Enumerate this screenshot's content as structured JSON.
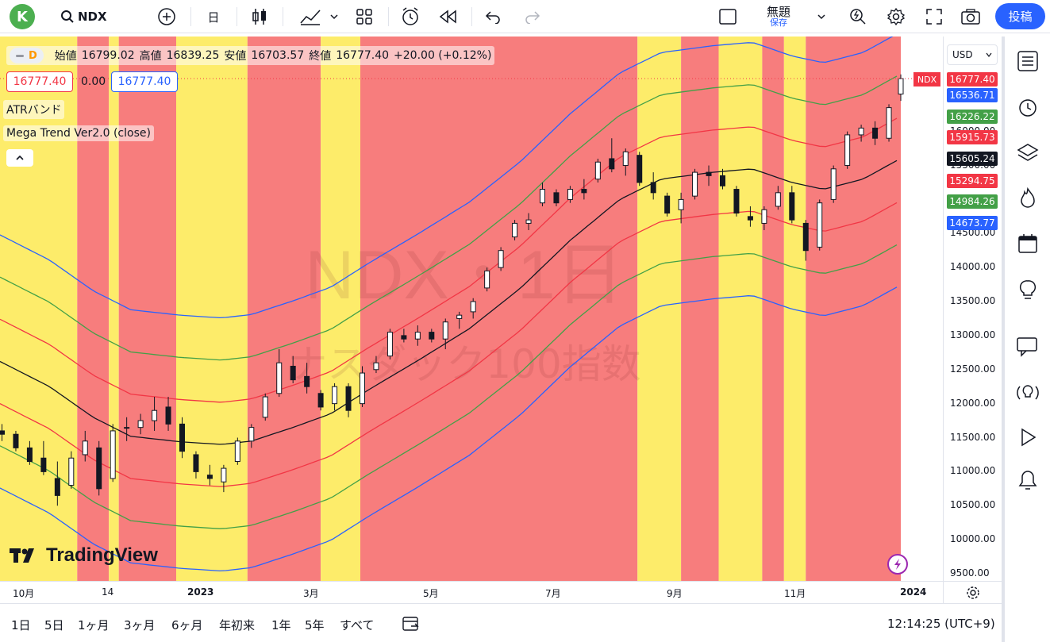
{
  "topbar": {
    "avatar_letter": "K",
    "symbol": "NDX",
    "interval": "日",
    "layout_title": "無題",
    "layout_subtitle": "保存",
    "publish": "投稿"
  },
  "legend": {
    "badge": "D",
    "open_label": "始値",
    "open": "16799.02",
    "high_label": "高値",
    "high": "16839.25",
    "low_label": "安値",
    "low": "16703.57",
    "close_label": "終値",
    "close": "16777.40",
    "change": "+20.00 (+0.12%)",
    "bid": "16777.40",
    "spread": "0.00",
    "ask": "16777.40",
    "indicator1": "ATRバンド",
    "indicator2": "Mega Trend Ver2.0 (close)"
  },
  "watermark": {
    "line1": "NDX・1日",
    "line2": "ナスダック100指数"
  },
  "logo": "TradingView",
  "currency": "USD",
  "price_axis": {
    "ticks": [
      "16000.00",
      "15500.00",
      "15000.00",
      "14500.00",
      "14000.00",
      "13500.00",
      "13000.00",
      "12500.00",
      "12000.00",
      "11500.00",
      "11000.00",
      "10500.00",
      "10000.00",
      "9500.00"
    ],
    "ticker_tag": "NDX",
    "labels": [
      {
        "text": "16777.40",
        "color": "#f23645"
      },
      {
        "text": "16536.71",
        "color": "#2962ff"
      },
      {
        "text": "16226.22",
        "color": "#43a047"
      },
      {
        "text": "15915.73",
        "color": "#f23645"
      },
      {
        "text": "15605.24",
        "color": "#131722"
      },
      {
        "text": "15294.75",
        "color": "#f23645"
      },
      {
        "text": "14984.26",
        "color": "#43a047"
      },
      {
        "text": "14673.77",
        "color": "#2962ff"
      }
    ]
  },
  "time_axis": [
    "10月",
    "14",
    "2023",
    "3月",
    "5月",
    "7月",
    "9月",
    "11月",
    "2024"
  ],
  "bottombar": {
    "ranges": [
      "1日",
      "5日",
      "1ヶ月",
      "3ヶ月",
      "6ヶ月",
      "年初来",
      "1年",
      "5年",
      "すべて"
    ],
    "clock": "12:14:25 (UTC+9)"
  },
  "colors": {
    "zone_red": "#f77d7d",
    "zone_yellow": "#fdec6a",
    "band_blue": "#2962ff",
    "band_green": "#43a047",
    "band_red": "#f23645",
    "mid_line": "#131722",
    "accent": "#2962ff"
  },
  "chart_data": {
    "type": "candlestick",
    "y_range": [
      9400,
      17000
    ],
    "zones": [
      {
        "from": "2022-09-15",
        "to": "2022-10-24",
        "color": "yellow"
      },
      {
        "from": "2022-10-24",
        "to": "2022-11-09",
        "color": "red"
      },
      {
        "from": "2022-11-09",
        "to": "2022-11-14",
        "color": "yellow"
      },
      {
        "from": "2022-11-14",
        "to": "2022-12-13",
        "color": "red"
      },
      {
        "from": "2022-12-13",
        "to": "2023-01-18",
        "color": "yellow"
      },
      {
        "from": "2023-01-18",
        "to": "2023-02-24",
        "color": "red"
      },
      {
        "from": "2023-02-24",
        "to": "2023-03-16",
        "color": "yellow"
      },
      {
        "from": "2023-03-16",
        "to": "2023-08-03",
        "color": "red"
      },
      {
        "from": "2023-08-03",
        "to": "2023-08-25",
        "color": "yellow"
      },
      {
        "from": "2023-08-25",
        "to": "2023-09-13",
        "color": "red"
      },
      {
        "from": "2023-09-13",
        "to": "2023-10-05",
        "color": "yellow"
      },
      {
        "from": "2023-10-05",
        "to": "2023-10-16",
        "color": "red"
      },
      {
        "from": "2023-10-16",
        "to": "2023-10-27",
        "color": "yellow"
      },
      {
        "from": "2023-10-27",
        "to": "2023-12-14",
        "color": "red"
      }
    ],
    "mid_line": [
      [
        "2022-09-15",
        12620
      ],
      [
        "2022-10-10",
        12250
      ],
      [
        "2022-11-01",
        11800
      ],
      [
        "2022-11-20",
        11520
      ],
      [
        "2022-12-15",
        11440
      ],
      [
        "2023-01-05",
        11400
      ],
      [
        "2023-01-20",
        11450
      ],
      [
        "2023-02-10",
        11650
      ],
      [
        "2023-03-01",
        11850
      ],
      [
        "2023-03-20",
        12200
      ],
      [
        "2023-04-15",
        12650
      ],
      [
        "2023-05-10",
        13100
      ],
      [
        "2023-06-05",
        13700
      ],
      [
        "2023-06-30",
        14400
      ],
      [
        "2023-07-25",
        15000
      ],
      [
        "2023-08-15",
        15300
      ],
      [
        "2023-09-10",
        15400
      ],
      [
        "2023-09-30",
        15450
      ],
      [
        "2023-10-20",
        15250
      ],
      [
        "2023-11-05",
        15150
      ],
      [
        "2023-11-25",
        15300
      ],
      [
        "2023-12-14",
        15605
      ]
    ],
    "band_offsets_blue": 1860,
    "band_offsets_green": 1240,
    "band_offsets_red": 620,
    "candles": [
      [
        "2022-09-16",
        11600,
        11700,
        11450,
        11550
      ],
      [
        "2022-09-23",
        11550,
        11600,
        11300,
        11350
      ],
      [
        "2022-09-30",
        11350,
        11450,
        11100,
        11150
      ],
      [
        "2022-10-07",
        11200,
        11450,
        10950,
        11000
      ],
      [
        "2022-10-14",
        10900,
        11150,
        10500,
        10650
      ],
      [
        "2022-10-21",
        10800,
        11300,
        10750,
        11200
      ],
      [
        "2022-10-28",
        11250,
        11600,
        11150,
        11450
      ],
      [
        "2022-11-04",
        11350,
        11450,
        10650,
        10750
      ],
      [
        "2022-11-11",
        10900,
        11700,
        10850,
        11600
      ],
      [
        "2022-11-18",
        11650,
        11800,
        11450,
        11650
      ],
      [
        "2022-11-25",
        11650,
        11850,
        11550,
        11750
      ],
      [
        "2022-12-02",
        11750,
        12100,
        11600,
        11900
      ],
      [
        "2022-12-09",
        11950,
        12100,
        11600,
        11700
      ],
      [
        "2022-12-16",
        11700,
        11800,
        11200,
        11300
      ],
      [
        "2022-12-23",
        11250,
        11300,
        10900,
        11000
      ],
      [
        "2022-12-30",
        10950,
        11100,
        10800,
        10900
      ],
      [
        "2023-01-06",
        10850,
        11100,
        10700,
        11050
      ],
      [
        "2023-01-13",
        11150,
        11500,
        11100,
        11450
      ],
      [
        "2023-01-20",
        11450,
        11700,
        11350,
        11650
      ],
      [
        "2023-01-27",
        11800,
        12150,
        11750,
        12100
      ],
      [
        "2023-02-03",
        12150,
        12800,
        12100,
        12600
      ],
      [
        "2023-02-10",
        12550,
        12700,
        12300,
        12350
      ],
      [
        "2023-02-17",
        12400,
        12600,
        12150,
        12250
      ],
      [
        "2023-02-24",
        12150,
        12200,
        11900,
        11950
      ],
      [
        "2023-03-03",
        12000,
        12300,
        11900,
        12250
      ],
      [
        "2023-03-10",
        12250,
        12300,
        11800,
        11900
      ],
      [
        "2023-03-17",
        12000,
        12550,
        11950,
        12450
      ],
      [
        "2023-03-24",
        12500,
        12700,
        12450,
        12600
      ],
      [
        "2023-03-31",
        12700,
        13100,
        12650,
        13050
      ],
      [
        "2023-04-07",
        13000,
        13100,
        12900,
        12950
      ],
      [
        "2023-04-14",
        12950,
        13150,
        12850,
        13050
      ],
      [
        "2023-04-21",
        13050,
        13100,
        12900,
        12950
      ],
      [
        "2023-04-28",
        12950,
        13250,
        12800,
        13200
      ],
      [
        "2023-05-05",
        13250,
        13350,
        13100,
        13300
      ],
      [
        "2023-05-12",
        13350,
        13550,
        13250,
        13500
      ],
      [
        "2023-05-19",
        13700,
        14000,
        13650,
        13950
      ],
      [
        "2023-05-26",
        14000,
        14300,
        13950,
        14250
      ],
      [
        "2023-06-02",
        14450,
        14700,
        14400,
        14650
      ],
      [
        "2023-06-09",
        14650,
        14800,
        14550,
        14700
      ],
      [
        "2023-06-16",
        14950,
        15250,
        14900,
        15150
      ],
      [
        "2023-06-23",
        15100,
        15150,
        14900,
        14950
      ],
      [
        "2023-06-30",
        15000,
        15200,
        14950,
        15150
      ],
      [
        "2023-07-07",
        15150,
        15300,
        15000,
        15100
      ],
      [
        "2023-07-14",
        15300,
        15600,
        15250,
        15550
      ],
      [
        "2023-07-21",
        15600,
        15900,
        15400,
        15450
      ],
      [
        "2023-07-28",
        15500,
        15750,
        15350,
        15700
      ],
      [
        "2023-08-04",
        15650,
        15700,
        15200,
        15250
      ],
      [
        "2023-08-11",
        15250,
        15400,
        15000,
        15100
      ],
      [
        "2023-08-18",
        15050,
        15100,
        14750,
        14800
      ],
      [
        "2023-08-25",
        14850,
        15100,
        14650,
        15000
      ],
      [
        "2023-09-01",
        15050,
        15450,
        15000,
        15400
      ],
      [
        "2023-09-08",
        15400,
        15500,
        15200,
        15350
      ],
      [
        "2023-09-15",
        15350,
        15450,
        15150,
        15200
      ],
      [
        "2023-09-22",
        15150,
        15200,
        14750,
        14800
      ],
      [
        "2023-09-29",
        14750,
        14900,
        14600,
        14700
      ],
      [
        "2023-10-06",
        14650,
        14900,
        14550,
        14850
      ],
      [
        "2023-10-13",
        14900,
        15200,
        14850,
        15100
      ],
      [
        "2023-10-20",
        15100,
        15200,
        14650,
        14700
      ],
      [
        "2023-10-27",
        14650,
        14700,
        14100,
        14250
      ],
      [
        "2023-11-03",
        14300,
        15000,
        14250,
        14950
      ],
      [
        "2023-11-10",
        15000,
        15500,
        14950,
        15450
      ],
      [
        "2023-11-17",
        15500,
        16000,
        15450,
        15950
      ],
      [
        "2023-11-24",
        15950,
        16100,
        15850,
        16050
      ],
      [
        "2023-12-01",
        16050,
        16150,
        15800,
        15900
      ],
      [
        "2023-12-08",
        15900,
        16400,
        15850,
        16350
      ],
      [
        "2023-12-14",
        16550,
        16839.25,
        16450,
        16777.4
      ]
    ]
  }
}
